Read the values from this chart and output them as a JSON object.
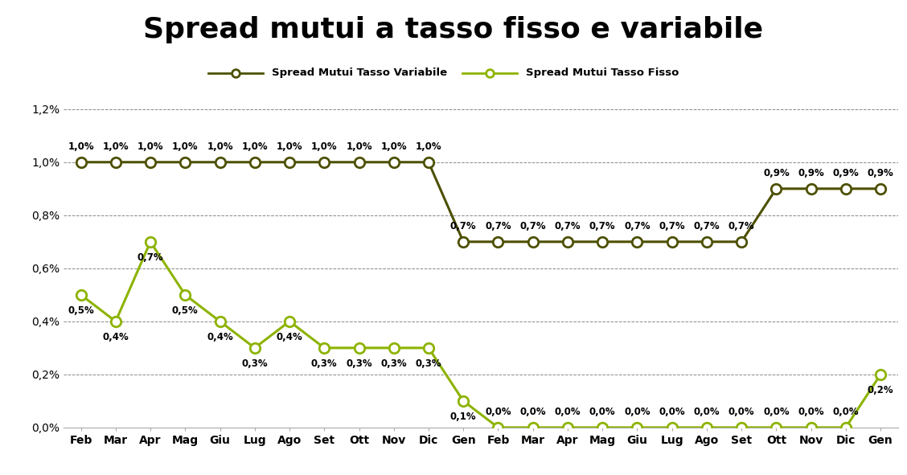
{
  "title": "Spread mutui a tasso fisso e variabile",
  "header_color": "#d9d9d9",
  "plot_background": "#ffffff",
  "grid_color": "#888888",
  "x_labels": [
    "Feb",
    "Mar",
    "Apr",
    "Mag",
    "Giu",
    "Lug",
    "Ago",
    "Set",
    "Ott",
    "Nov",
    "Dic",
    "Gen",
    "Feb",
    "Mar",
    "Apr",
    "Mag",
    "Giu",
    "Lug",
    "Ago",
    "Set",
    "Ott",
    "Nov",
    "Dic",
    "Gen"
  ],
  "variabile": {
    "values": [
      1.0,
      1.0,
      1.0,
      1.0,
      1.0,
      1.0,
      1.0,
      1.0,
      1.0,
      1.0,
      1.0,
      0.7,
      0.7,
      0.7,
      0.7,
      0.7,
      0.7,
      0.7,
      0.7,
      0.7,
      0.9,
      0.9,
      0.9,
      0.9
    ],
    "labels": [
      "1,0%",
      "1,0%",
      "1,0%",
      "1,0%",
      "1,0%",
      "1,0%",
      "1,0%",
      "1,0%",
      "1,0%",
      "1,0%",
      "1,0%",
      "0,7%",
      "0,7%",
      "0,7%",
      "0,7%",
      "0,7%",
      "0,7%",
      "0,7%",
      "0,7%",
      "0,7%",
      "0,9%",
      "0,9%",
      "0,9%",
      "0,9%"
    ],
    "label_offsets": [
      1,
      1,
      1,
      1,
      1,
      1,
      1,
      1,
      1,
      1,
      1,
      1,
      1,
      1,
      1,
      1,
      1,
      1,
      1,
      1,
      1,
      1,
      1,
      1
    ],
    "color": "#4d5000",
    "legend": "Spread Mutui Tasso Variabile"
  },
  "fisso": {
    "values": [
      0.5,
      0.4,
      0.7,
      0.5,
      0.4,
      0.3,
      0.4,
      0.3,
      0.3,
      0.3,
      0.3,
      0.1,
      0.0,
      0.0,
      0.0,
      0.0,
      0.0,
      0.0,
      0.0,
      0.0,
      0.0,
      0.0,
      0.0,
      0.2
    ],
    "labels": [
      "0,5%",
      "0,4%",
      "0,7%",
      "0,5%",
      "0,4%",
      "0,3%",
      "0,4%",
      "0,3%",
      "0,3%",
      "0,3%",
      "0,3%",
      "0,1%",
      "0,0%",
      "0,0%",
      "0,0%",
      "0,0%",
      "0,0%",
      "0,0%",
      "0,0%",
      "0,0%",
      "0,0%",
      "0,0%",
      "0,0%",
      "0,2%"
    ],
    "color": "#8db300",
    "legend": "Spread Mutui Tasso Fisso"
  },
  "ylim": [
    0.0,
    1.28
  ],
  "yticks": [
    0.0,
    0.2,
    0.4,
    0.6,
    0.8,
    1.0,
    1.2
  ],
  "ytick_labels": [
    "0,0%",
    "0,2%",
    "0,4%",
    "0,6%",
    "0,8%",
    "1,0%",
    "1,2%"
  ],
  "label_fontsize": 8.5,
  "legend_fontsize": 9.5,
  "tick_fontsize": 10
}
